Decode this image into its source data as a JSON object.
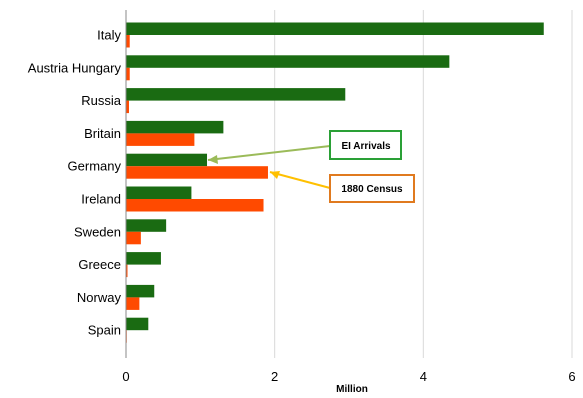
{
  "chart_data": {
    "type": "bar",
    "orientation": "horizontal",
    "categories": [
      "Italy",
      "Austria Hungary",
      "Russia",
      "Britain",
      "Germany",
      "Ireland",
      "Sweden",
      "Greece",
      "Norway",
      "Spain"
    ],
    "series": [
      {
        "name": "EI Arrivals",
        "color": "#1a6b12",
        "values": [
          5.62,
          4.35,
          2.95,
          1.31,
          1.09,
          0.88,
          0.54,
          0.47,
          0.38,
          0.3
        ]
      },
      {
        "name": "1880 Census",
        "color": "#ff4a00",
        "values": [
          0.05,
          0.05,
          0.04,
          0.92,
          1.91,
          1.85,
          0.2,
          0.02,
          0.18,
          0.01
        ]
      }
    ],
    "xlabel": "Million",
    "xlim": [
      0,
      6
    ],
    "xticks": [
      0,
      2,
      4,
      6
    ],
    "grid": true,
    "callouts": [
      {
        "text": "EI Arrivals",
        "border_color": "#2aa036",
        "arrow_color": "#9bbb59",
        "points_to": "Germany"
      },
      {
        "text": "1880 Census",
        "border_color": "#e07a1f",
        "arrow_color": "#ffc000",
        "points_to": "Germany"
      }
    ]
  }
}
